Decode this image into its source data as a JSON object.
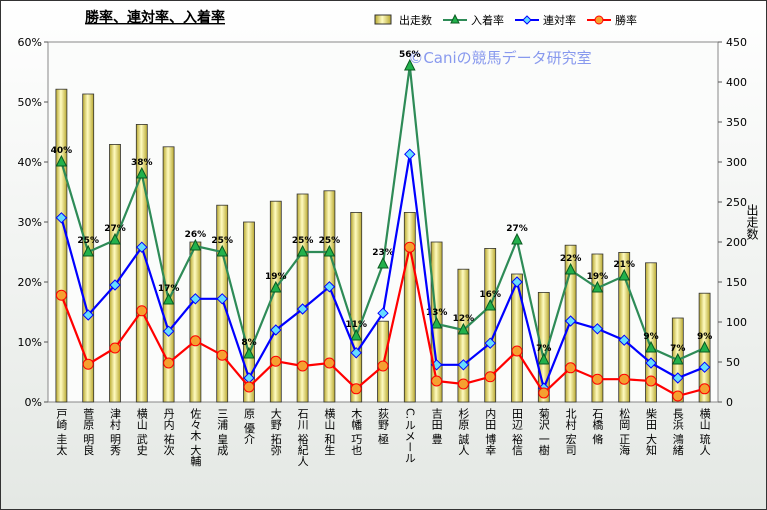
{
  "chart_data": {
    "type": "combo",
    "title": "勝率、連対率、入着率",
    "watermark": "©Caniの競馬データ研究室",
    "y2label": "出走数",
    "categories": [
      "戸崎 圭太",
      "菅原 明良",
      "津村 明秀",
      "横山 武史",
      "丹内 祐次",
      "佐々木 大輔",
      "三浦 皇成",
      "原 優介",
      "大野 拓弥",
      "石川 裕紀人",
      "横山 和生",
      "木幡 巧也",
      "荻野 極",
      "C.ルメール",
      "吉田 豊",
      "杉原 誠人",
      "内田 博幸",
      "田辺 裕信",
      "菊沢 一樹",
      "北村 宏司",
      "石橋 脩",
      "松岡 正海",
      "柴田 大知",
      "長浜 鴻緒",
      "横山 琉人"
    ],
    "ylim": [
      0,
      60
    ],
    "yticks": [
      {
        "value": 0,
        "label": "0%"
      },
      {
        "value": 10,
        "label": "10%"
      },
      {
        "value": 20,
        "label": "20%"
      },
      {
        "value": 30,
        "label": "30%"
      },
      {
        "value": 40,
        "label": "40%"
      },
      {
        "value": 50,
        "label": "50%"
      },
      {
        "value": 60,
        "label": "60%"
      }
    ],
    "y2lim": [
      0,
      450
    ],
    "y2ticks": [
      0,
      50,
      100,
      150,
      200,
      250,
      300,
      350,
      400,
      450
    ],
    "series": [
      {
        "name": "出走数",
        "type": "bar",
        "axis": "y2",
        "color": "#e9e27a",
        "values": [
          391,
          385,
          322,
          347,
          319,
          200,
          246,
          225,
          251,
          260,
          264,
          237,
          101,
          237,
          200,
          166,
          192,
          160,
          137,
          196,
          185,
          187,
          174,
          105,
          136
        ]
      },
      {
        "name": "入着率",
        "type": "line",
        "marker": "triangle",
        "color": "#2e8b57",
        "marker_color": "#22b14c",
        "values": [
          40,
          25,
          27,
          38,
          17,
          26,
          25,
          8,
          19,
          25,
          25,
          11,
          23,
          56,
          13,
          12,
          16,
          27,
          7,
          22,
          19,
          21,
          9,
          7,
          9
        ],
        "value_labels": [
          "40%",
          "25%",
          "27%",
          "38%",
          "17%",
          "26%",
          "25%",
          "8%",
          "19%",
          "25%",
          "25%",
          "11%",
          "23%",
          "56%",
          "13%",
          "12%",
          "16%",
          "27%",
          "7%",
          "22%",
          "19%",
          "21%",
          "9%",
          "7%",
          "9%"
        ]
      },
      {
        "name": "連対率",
        "type": "line",
        "marker": "diamond",
        "color": "#0000ff",
        "marker_color": "#66ddff",
        "values": [
          30.7,
          14.5,
          19.5,
          25.8,
          11.8,
          17.2,
          17.2,
          4,
          12,
          15.5,
          19.2,
          8.2,
          14.8,
          41.3,
          6.2,
          6.2,
          9.8,
          20,
          2.3,
          13.5,
          12.2,
          10.3,
          6.5,
          4,
          5.8
        ]
      },
      {
        "name": "勝率",
        "type": "line",
        "marker": "circle",
        "color": "#ff0000",
        "marker_color": "#f5a030",
        "values": [
          17.8,
          6.3,
          9,
          15.2,
          6.5,
          10.2,
          7.8,
          2.5,
          6.8,
          6,
          6.5,
          2.2,
          6,
          25.8,
          3.5,
          3,
          4.2,
          8.5,
          1.5,
          5.7,
          3.8,
          3.8,
          3.5,
          1,
          2.2
        ]
      }
    ]
  }
}
